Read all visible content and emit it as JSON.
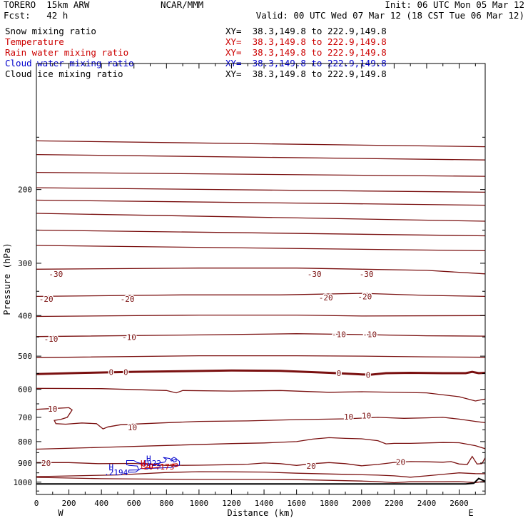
{
  "header": {
    "model": "TORERO  15km ARW",
    "forecast": "Fcst:   42 h",
    "center": "NCAR/MMM",
    "init": "Init: 06 UTC Mon 05 Mar 12",
    "valid": "Valid: 00 UTC Wed 07 Mar 12 (18 CST Tue 06 Mar 12)"
  },
  "fields": [
    {
      "label": "Snow mixing ratio",
      "xy": "XY=  38.3,149.8 to 222.9,149.8",
      "color": "#000000"
    },
    {
      "label": "Temperature",
      "xy": "XY=  38.3,149.8 to 222.9,149.8",
      "color": "#cc0000"
    },
    {
      "label": "Rain water mixing ratio",
      "xy": "XY=  38.3,149.8 to 222.9,149.8",
      "color": "#cc0000"
    },
    {
      "label": "Cloud water mixing ratio",
      "xy": "XY=  38.3,149.8 to 222.9,149.8",
      "color": "#0000cc"
    },
    {
      "label": "Cloud ice mixing ratio",
      "xy": "XY=  38.3,149.8 to 222.9,149.8",
      "color": "#000000"
    }
  ],
  "chart_data": {
    "type": "contour",
    "xlabel": "Distance (km)",
    "ylabel": "Pressure (hPa)",
    "xlim": [
      0,
      2760
    ],
    "ylim": [
      1070,
      100
    ],
    "y_scale": "log",
    "x_ticks": [
      0,
      200,
      400,
      600,
      800,
      1000,
      1200,
      1400,
      1600,
      1800,
      2000,
      2200,
      2400,
      2600
    ],
    "y_ticks": [
      200,
      300,
      400,
      500,
      600,
      700,
      800,
      900,
      1000
    ],
    "x_end_labels": {
      "left": "W",
      "right": "E"
    },
    "temperature_line_color": "#7a1010",
    "cloud_color": "#0000cc",
    "rain_color": "#cc0000",
    "temperature_contour_levels": [
      -30,
      -20,
      -10,
      0,
      10,
      20
    ],
    "temperature_labels": [
      {
        "text": "-30",
        "x": 120,
        "p": 318
      },
      {
        "text": "-30",
        "x": 1710,
        "p": 318
      },
      {
        "text": "-30",
        "x": 2030,
        "p": 318
      },
      {
        "text": "-20",
        "x": 60,
        "p": 365
      },
      {
        "text": "-20",
        "x": 560,
        "p": 365
      },
      {
        "text": "-20",
        "x": 1780,
        "p": 362
      },
      {
        "text": "-20",
        "x": 2020,
        "p": 360
      },
      {
        "text": "-10",
        "x": 90,
        "p": 455
      },
      {
        "text": "-10",
        "x": 570,
        "p": 450
      },
      {
        "text": "-10",
        "x": 1860,
        "p": 443
      },
      {
        "text": "-10",
        "x": 2050,
        "p": 443
      },
      {
        "text": "0",
        "x": 460,
        "p": 546
      },
      {
        "text": "0",
        "x": 550,
        "p": 546
      },
      {
        "text": "0",
        "x": 1860,
        "p": 549
      },
      {
        "text": "0",
        "x": 2040,
        "p": 555
      },
      {
        "text": "10",
        "x": 100,
        "p": 668
      },
      {
        "text": "10",
        "x": 590,
        "p": 740
      },
      {
        "text": "10",
        "x": 1920,
        "p": 697
      },
      {
        "text": "10",
        "x": 2030,
        "p": 693
      },
      {
        "text": "20",
        "x": 60,
        "p": 900
      },
      {
        "text": "20",
        "x": 1690,
        "p": 914
      },
      {
        "text": "20",
        "x": 2240,
        "p": 895
      }
    ],
    "cloud_labels": [
      {
        "text": "H",
        "x": 690,
        "p": 877
      },
      {
        "text": "H",
        "x": 460,
        "p": 920
      },
      {
        "text": ".2194",
        "x": 490,
        "p": 947
      },
      {
        "text": "4922",
        "x": 710,
        "p": 900
      }
    ],
    "rain_labels": [
      {
        "text": "H",
        "x": 655,
        "p": 900
      },
      {
        "text": "L",
        "x": 655,
        "p": 915
      },
      {
        "text": "20",
        "x": 690,
        "p": 918
      },
      {
        "text": ".173",
        "x": 790,
        "p": 918
      }
    ],
    "cloud_contours": [
      [
        [
          600,
          888
        ],
        [
          555,
          888
        ],
        [
          555,
          908
        ],
        [
          570,
          912
        ],
        [
          620,
          915
        ],
        [
          630,
          935
        ],
        [
          570,
          936
        ],
        [
          565,
          947
        ],
        [
          610,
          946
        ],
        [
          640,
          928
        ],
        [
          680,
          928
        ],
        [
          760,
          925
        ],
        [
          830,
          922
        ],
        [
          880,
          910
        ],
        [
          880,
          892
        ],
        [
          860,
          880
        ],
        [
          830,
          890
        ],
        [
          820,
          878
        ],
        [
          780,
          873
        ],
        [
          800,
          882
        ],
        [
          790,
          895
        ],
        [
          760,
          900
        ],
        [
          700,
          908
        ],
        [
          660,
          905
        ],
        [
          620,
          898
        ],
        [
          600,
          888
        ]
      ],
      [
        [
          840,
          890
        ],
        [
          830,
          880
        ],
        [
          845,
          872
        ],
        [
          860,
          878
        ],
        [
          860,
          892
        ],
        [
          845,
          895
        ],
        [
          840,
          890
        ]
      ]
    ],
    "rain_contours": [
      [
        [
          650,
          910
        ],
        [
          640,
          905
        ],
        [
          665,
          902
        ],
        [
          720,
          905
        ],
        [
          760,
          910
        ],
        [
          760,
          920
        ],
        [
          720,
          925
        ],
        [
          670,
          922
        ],
        [
          650,
          910
        ]
      ],
      [
        [
          850,
          912
        ],
        [
          840,
          905
        ],
        [
          865,
          903
        ],
        [
          870,
          915
        ],
        [
          855,
          918
        ],
        [
          850,
          912
        ]
      ]
    ],
    "temperature_contours": [
      [
        [
          0,
          153
        ],
        [
          2760,
          158
        ]
      ],
      [
        [
          0,
          165
        ],
        [
          2760,
          170
        ]
      ],
      [
        [
          0,
          182
        ],
        [
          2760,
          186
        ]
      ],
      [
        [
          0,
          198
        ],
        [
          2760,
          203
        ]
      ],
      [
        [
          0,
          212
        ],
        [
          2760,
          218
        ]
      ],
      [
        [
          0,
          228
        ],
        [
          2760,
          238
        ]
      ],
      [
        [
          0,
          250
        ],
        [
          2760,
          258
        ]
      ],
      [
        [
          0,
          272
        ],
        [
          2760,
          280
        ]
      ],
      [
        [
          0,
          310
        ],
        [
          1000,
          308
        ],
        [
          1600,
          308
        ],
        [
          2000,
          310
        ],
        [
          2400,
          312
        ],
        [
          2760,
          318
        ]
      ],
      [
        [
          0,
          360
        ],
        [
          900,
          357
        ],
        [
          1500,
          357
        ],
        [
          2000,
          354
        ],
        [
          2400,
          358
        ],
        [
          2760,
          360
        ]
      ],
      [
        [
          0,
          402
        ],
        [
          1000,
          399
        ],
        [
          1600,
          399
        ],
        [
          2000,
          401
        ],
        [
          2760,
          400
        ]
      ],
      [
        [
          0,
          449
        ],
        [
          1000,
          445
        ],
        [
          1600,
          442
        ],
        [
          2000,
          444
        ],
        [
          2400,
          447
        ],
        [
          2760,
          448
        ]
      ],
      [
        [
          0,
          504
        ],
        [
          1000,
          499
        ],
        [
          1600,
          499
        ],
        [
          2000,
          500
        ],
        [
          2400,
          502
        ],
        [
          2760,
          503
        ]
      ],
      [
        [
          0,
          552
        ],
        [
          300,
          548
        ],
        [
          600,
          545
        ],
        [
          900,
          543
        ],
        [
          1200,
          541
        ],
        [
          1500,
          542
        ],
        [
          1800,
          548
        ],
        [
          1960,
          552
        ],
        [
          2050,
          554
        ],
        [
          2150,
          549
        ],
        [
          2300,
          548
        ],
        [
          2500,
          549
        ],
        [
          2640,
          549
        ],
        [
          2680,
          545
        ],
        [
          2720,
          549
        ],
        [
          2760,
          548
        ]
      ],
      [
        [
          0,
          597
        ],
        [
          400,
          598
        ],
        [
          800,
          604
        ],
        [
          860,
          612
        ],
        [
          900,
          604
        ],
        [
          1200,
          606
        ],
        [
          1500,
          604
        ],
        [
          1800,
          610
        ],
        [
          2000,
          608
        ],
        [
          2400,
          612
        ],
        [
          2600,
          625
        ],
        [
          2700,
          640
        ],
        [
          2760,
          633
        ]
      ],
      [
        [
          0,
          670
        ],
        [
          200,
          664
        ],
        [
          220,
          672
        ],
        [
          190,
          700
        ],
        [
          150,
          708
        ],
        [
          110,
          712
        ],
        [
          120,
          725
        ],
        [
          180,
          727
        ],
        [
          280,
          722
        ],
        [
          370,
          725
        ],
        [
          410,
          746
        ],
        [
          440,
          738
        ],
        [
          520,
          729
        ],
        [
          760,
          722
        ],
        [
          1000,
          716
        ],
        [
          1300,
          714
        ],
        [
          1600,
          709
        ],
        [
          1900,
          706
        ],
        [
          2000,
          703
        ],
        [
          2100,
          700
        ],
        [
          2180,
          702
        ],
        [
          2260,
          704
        ],
        [
          2400,
          702
        ],
        [
          2500,
          700
        ],
        [
          2600,
          707
        ],
        [
          2700,
          716
        ],
        [
          2760,
          721
        ]
      ],
      [
        [
          0,
          834
        ],
        [
          400,
          826
        ],
        [
          800,
          817
        ],
        [
          1200,
          809
        ],
        [
          1400,
          806
        ],
        [
          1600,
          800
        ],
        [
          1700,
          789
        ],
        [
          1800,
          783
        ],
        [
          1900,
          786
        ],
        [
          2000,
          788
        ],
        [
          2100,
          796
        ],
        [
          2150,
          810
        ],
        [
          2200,
          808
        ],
        [
          2300,
          808
        ],
        [
          2500,
          804
        ],
        [
          2600,
          805
        ],
        [
          2700,
          818
        ],
        [
          2760,
          832
        ]
      ],
      [
        [
          0,
          898
        ],
        [
          200,
          898
        ],
        [
          380,
          903
        ],
        [
          600,
          902
        ],
        [
          800,
          912
        ],
        [
          1000,
          911
        ],
        [
          1200,
          908
        ],
        [
          1300,
          906
        ],
        [
          1400,
          900
        ],
        [
          1500,
          903
        ],
        [
          1600,
          912
        ],
        [
          1700,
          903
        ],
        [
          1800,
          898
        ],
        [
          1900,
          903
        ],
        [
          2000,
          914
        ],
        [
          2100,
          907
        ],
        [
          2200,
          897
        ],
        [
          2300,
          893
        ],
        [
          2400,
          894
        ],
        [
          2500,
          896
        ],
        [
          2550,
          893
        ],
        [
          2600,
          905
        ],
        [
          2650,
          907
        ],
        [
          2680,
          868
        ],
        [
          2710,
          905
        ],
        [
          2740,
          903
        ],
        [
          2760,
          875
        ]
      ],
      [
        [
          0,
          970
        ],
        [
          500,
          961
        ],
        [
          800,
          948
        ],
        [
          1000,
          944
        ],
        [
          1200,
          945
        ],
        [
          1400,
          946
        ],
        [
          1600,
          952
        ],
        [
          1900,
          958
        ],
        [
          2100,
          962
        ],
        [
          2200,
          966
        ],
        [
          2300,
          973
        ],
        [
          2400,
          966
        ],
        [
          2600,
          950
        ],
        [
          2700,
          954
        ],
        [
          2760,
          955
        ]
      ],
      [
        [
          0,
          974
        ],
        [
          400,
          981
        ],
        [
          800,
          984
        ],
        [
          1000,
          985
        ],
        [
          1400,
          985
        ],
        [
          1600,
          986
        ],
        [
          1800,
          990
        ],
        [
          2000,
          994
        ],
        [
          2100,
          997
        ],
        [
          2200,
          1003
        ],
        [
          2300,
          998
        ],
        [
          2400,
          998
        ],
        [
          2500,
          998
        ],
        [
          2600,
          997
        ],
        [
          2700,
          1002
        ],
        [
          2760,
          995
        ]
      ]
    ],
    "terrain": [
      [
        0,
        1010
      ],
      [
        2640,
        1010
      ],
      [
        2690,
        1006
      ],
      [
        2720,
        980
      ],
      [
        2760,
        995
      ]
    ]
  }
}
